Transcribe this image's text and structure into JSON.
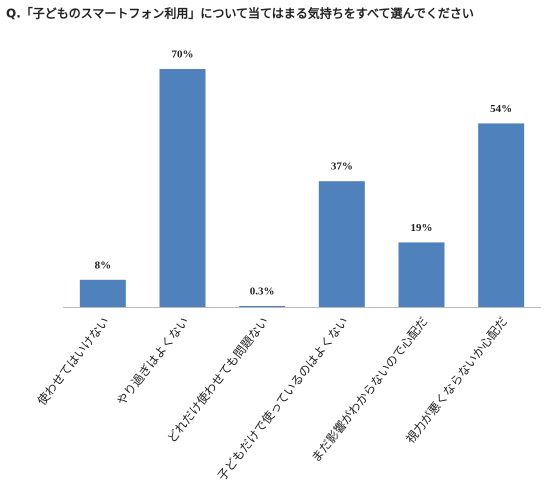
{
  "chart_data": {
    "type": "bar",
    "title": "Q.「子どものスマートフォン利用」について当てはまる気持ちをすべて選んでください",
    "categories": [
      "使わせてはいけない",
      "やり過ぎはよくない",
      "どれだけ使わせても問題ない",
      "子どもだけで使っているのはよくない",
      "まだ影響がわからないので心配だ",
      "視力が悪くならないか心配だ"
    ],
    "values": [
      8,
      70,
      0.3,
      37,
      19,
      54
    ],
    "value_labels": [
      "8%",
      "70%",
      "0.3%",
      "37%",
      "19%",
      "54%"
    ],
    "color": "#4f81bd"
  }
}
